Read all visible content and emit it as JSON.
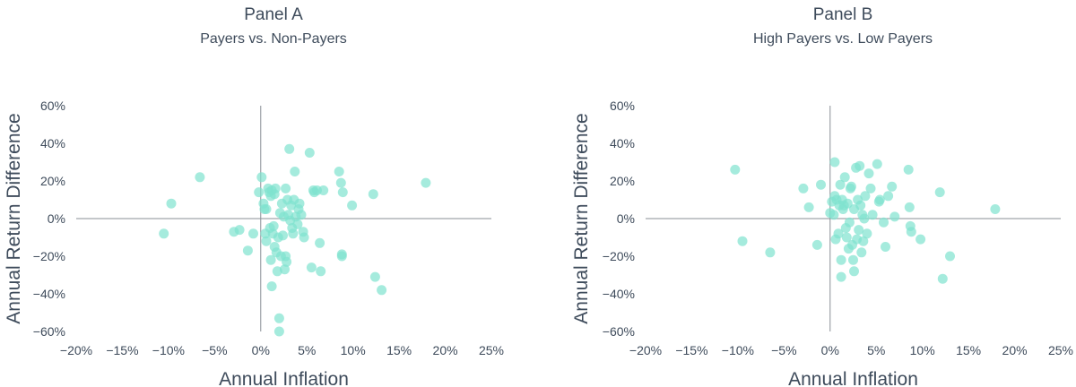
{
  "chart_data": [
    {
      "type": "scatter",
      "title": "Panel A",
      "subtitle": "Payers vs. Non-Payers",
      "xlabel": "Annual Inflation",
      "ylabel": "Annual Return Difference",
      "xlim": [
        -20,
        25
      ],
      "ylim": [
        -60,
        60
      ],
      "x_ticks": [
        "−20%",
        "−15%",
        "−10%",
        "−5%",
        "0%",
        "5%",
        "10%",
        "15%",
        "20%",
        "25%"
      ],
      "y_ticks": [
        "60%",
        "40%",
        "20%",
        "0%",
        "−20%",
        "−40%",
        "−60%"
      ],
      "grid": false,
      "marker_color": "#7fe3cf",
      "points": [
        [
          -10.5,
          -8
        ],
        [
          -9.7,
          8
        ],
        [
          -6.6,
          22
        ],
        [
          -2.9,
          -7
        ],
        [
          -2.3,
          -6
        ],
        [
          -1.4,
          -17
        ],
        [
          -0.8,
          -8
        ],
        [
          -0.2,
          14
        ],
        [
          0.1,
          22
        ],
        [
          0.3,
          8
        ],
        [
          0.4,
          5
        ],
        [
          0.5,
          -8
        ],
        [
          0.6,
          5
        ],
        [
          0.6,
          -12
        ],
        [
          0.8,
          16
        ],
        [
          0.9,
          14
        ],
        [
          1.0,
          -5
        ],
        [
          1.1,
          12
        ],
        [
          1.1,
          -22
        ],
        [
          1.2,
          -36
        ],
        [
          1.2,
          15
        ],
        [
          1.3,
          -8
        ],
        [
          1.4,
          -4
        ],
        [
          1.5,
          13
        ],
        [
          1.5,
          -15
        ],
        [
          1.6,
          16
        ],
        [
          1.7,
          -18
        ],
        [
          1.8,
          -28
        ],
        [
          1.9,
          -10
        ],
        [
          2.0,
          -53
        ],
        [
          2.0,
          -60
        ],
        [
          2.1,
          3
        ],
        [
          2.2,
          -20
        ],
        [
          2.3,
          8
        ],
        [
          2.4,
          -9
        ],
        [
          2.5,
          1
        ],
        [
          2.6,
          -27
        ],
        [
          2.7,
          16
        ],
        [
          2.7,
          -20
        ],
        [
          2.8,
          -23
        ],
        [
          2.9,
          10
        ],
        [
          3.0,
          2
        ],
        [
          3.1,
          37
        ],
        [
          3.2,
          -1
        ],
        [
          3.3,
          7
        ],
        [
          3.4,
          -5
        ],
        [
          3.5,
          -8
        ],
        [
          3.6,
          10
        ],
        [
          3.7,
          25
        ],
        [
          3.8,
          1
        ],
        [
          4.0,
          -3
        ],
        [
          4.1,
          5
        ],
        [
          4.2,
          8
        ],
        [
          4.4,
          2
        ],
        [
          4.6,
          -7
        ],
        [
          4.7,
          -10
        ],
        [
          5.3,
          35
        ],
        [
          5.5,
          -26
        ],
        [
          5.7,
          15
        ],
        [
          5.8,
          14
        ],
        [
          6.1,
          15
        ],
        [
          6.4,
          -13
        ],
        [
          6.5,
          -28
        ],
        [
          6.8,
          15
        ],
        [
          8.5,
          25
        ],
        [
          8.7,
          19
        ],
        [
          8.8,
          -19
        ],
        [
          8.8,
          -20
        ],
        [
          8.9,
          14
        ],
        [
          9.9,
          7
        ],
        [
          12.2,
          13
        ],
        [
          12.4,
          -31
        ],
        [
          13.1,
          -38
        ],
        [
          17.9,
          19
        ]
      ]
    },
    {
      "type": "scatter",
      "title": "Panel B",
      "subtitle": "High Payers vs. Low Payers",
      "xlabel": "Annual Inflation",
      "ylabel": "Annual Return Difference",
      "xlim": [
        -20,
        25
      ],
      "ylim": [
        -60,
        60
      ],
      "x_ticks": [
        "−20%",
        "−15%",
        "−10%",
        "−5%",
        "0%",
        "5%",
        "10%",
        "15%",
        "20%",
        "25%"
      ],
      "y_ticks": [
        "60%",
        "40%",
        "20%",
        "0%",
        "−20%",
        "−40%",
        "−60%"
      ],
      "grid": false,
      "marker_color": "#7fe3cf",
      "points": [
        [
          -10.3,
          26
        ],
        [
          -9.5,
          -12
        ],
        [
          -6.5,
          -18
        ],
        [
          -2.9,
          16
        ],
        [
          -2.3,
          6
        ],
        [
          -1.4,
          -14
        ],
        [
          -1.0,
          18
        ],
        [
          0.0,
          3
        ],
        [
          0.2,
          9
        ],
        [
          0.4,
          2
        ],
        [
          0.5,
          12
        ],
        [
          0.5,
          30
        ],
        [
          0.6,
          -11
        ],
        [
          0.7,
          10
        ],
        [
          0.9,
          -8
        ],
        [
          1.0,
          7
        ],
        [
          1.1,
          18
        ],
        [
          1.2,
          -22
        ],
        [
          1.2,
          -31
        ],
        [
          1.3,
          10
        ],
        [
          1.4,
          5
        ],
        [
          1.5,
          7
        ],
        [
          1.6,
          22
        ],
        [
          1.7,
          -5
        ],
        [
          1.8,
          -10
        ],
        [
          1.9,
          8
        ],
        [
          2.0,
          -16
        ],
        [
          2.1,
          -2
        ],
        [
          2.2,
          16
        ],
        [
          2.3,
          17
        ],
        [
          2.4,
          -14
        ],
        [
          2.5,
          -22
        ],
        [
          2.6,
          -28
        ],
        [
          2.6,
          5
        ],
        [
          2.8,
          27
        ],
        [
          2.9,
          -11
        ],
        [
          3.0,
          10
        ],
        [
          3.1,
          -6
        ],
        [
          3.2,
          28
        ],
        [
          3.3,
          7
        ],
        [
          3.4,
          -18
        ],
        [
          3.5,
          2
        ],
        [
          3.6,
          -12
        ],
        [
          3.7,
          0
        ],
        [
          3.8,
          12
        ],
        [
          4.0,
          -8
        ],
        [
          4.2,
          24
        ],
        [
          4.4,
          16
        ],
        [
          4.6,
          2
        ],
        [
          5.1,
          29
        ],
        [
          5.3,
          9
        ],
        [
          5.4,
          10
        ],
        [
          5.8,
          -2
        ],
        [
          6.0,
          -15
        ],
        [
          6.3,
          12
        ],
        [
          6.7,
          17
        ],
        [
          7.0,
          1
        ],
        [
          8.5,
          26
        ],
        [
          8.6,
          6
        ],
        [
          8.7,
          -4
        ],
        [
          8.8,
          -7
        ],
        [
          9.8,
          -11
        ],
        [
          11.9,
          14
        ],
        [
          12.2,
          -32
        ],
        [
          13.0,
          -20
        ],
        [
          17.9,
          5
        ]
      ]
    }
  ]
}
